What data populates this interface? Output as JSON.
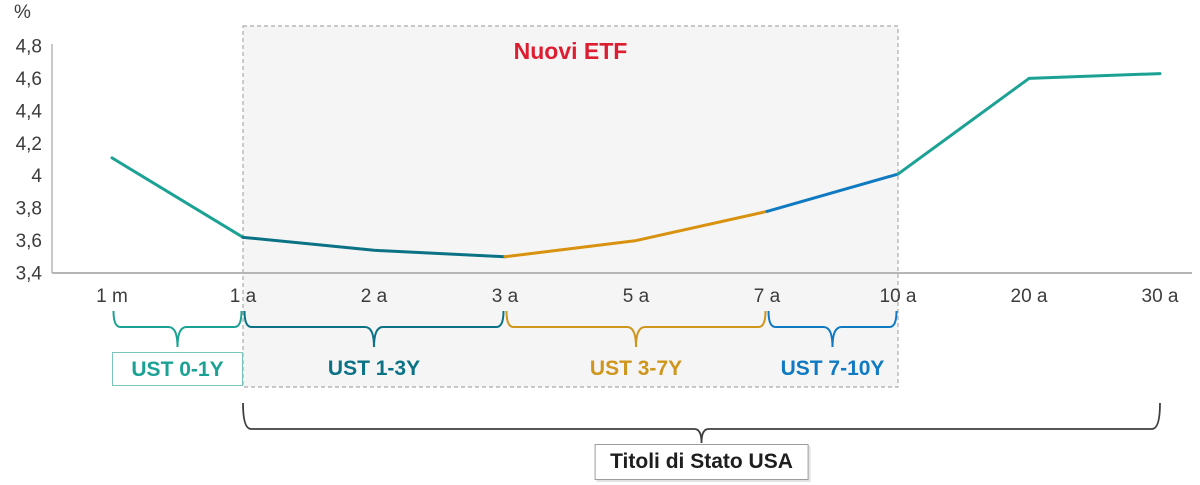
{
  "chart_data": {
    "type": "line",
    "unit_label": "%",
    "categories": [
      "1 m",
      "1 a",
      "2 a",
      "3 a",
      "5 a",
      "7 a",
      "10 a",
      "20 a",
      "30 a"
    ],
    "values": [
      4.11,
      3.62,
      3.54,
      3.5,
      3.6,
      3.78,
      4.01,
      4.6,
      4.63
    ],
    "ylim": [
      3.4,
      4.8
    ],
    "ytick_step": 0.2,
    "ytick_labels": [
      "3,4",
      "3,6",
      "3,8",
      "4",
      "4,2",
      "4,4",
      "4,6",
      "4,8"
    ],
    "grid": false,
    "legend": "none",
    "axis_color": "#b5b5b5",
    "tick_text_color": "#3c3c3c",
    "line_segments": [
      {
        "name": "ust-0-1y-segment",
        "from": 0,
        "to": 1,
        "color": "#1CA294"
      },
      {
        "name": "ust-1-3y-segment",
        "from": 1,
        "to": 3,
        "color": "#0B7285"
      },
      {
        "name": "ust-3-7y-segment",
        "from": 3,
        "to": 5,
        "color": "#D8920F"
      },
      {
        "name": "ust-7-10y-segment",
        "from": 5,
        "to": 6,
        "color": "#0F7AC2"
      },
      {
        "name": "10y-30y-segment",
        "from": 6,
        "to": 8,
        "color": "#1CA294"
      }
    ],
    "highlight_region": {
      "label": "Nuovi ETF",
      "from": 1,
      "to": 6,
      "label_color": "#DC1E30",
      "fill": "#F5F5F6",
      "border": "#ABABAB"
    },
    "etf_brackets": [
      {
        "label": "UST 0-1Y",
        "from": 0,
        "to": 1,
        "color": "#1CA294",
        "boxed": true,
        "box_border": "#7CC5BD"
      },
      {
        "label": "UST 1-3Y",
        "from": 1,
        "to": 3,
        "color": "#0B7285",
        "boxed": false
      },
      {
        "label": "UST 3-7Y",
        "from": 3,
        "to": 5,
        "color": "#CF961D",
        "boxed": false
      },
      {
        "label": "UST 7-10Y",
        "from": 5,
        "to": 6,
        "color": "#0F7AC2",
        "boxed": false
      }
    ],
    "bottom_bracket": {
      "label": "Titoli di Stato USA",
      "from": 1,
      "to": 8,
      "color": "#3F3F3F"
    }
  }
}
